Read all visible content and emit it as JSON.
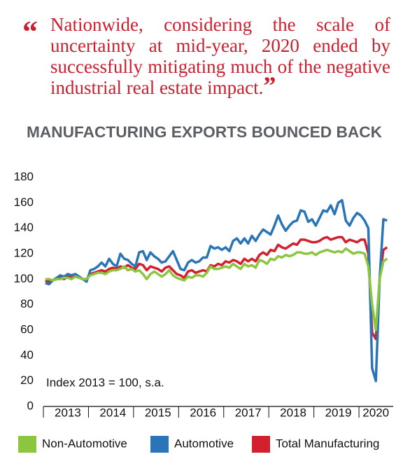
{
  "quote": {
    "open_mark": "“",
    "text": "Nationwide, considering the scale of uncertainty at mid-year, 2020 ended by successfully mitigating much of the negative industrial real estate impact.",
    "close_mark": "”"
  },
  "chart_data": {
    "type": "line",
    "title": "MANUFACTURING EXPORTS BOUNCED BACK",
    "annotation": "Index 2013 = 100, s.a.",
    "categories": [
      null,
      null,
      null,
      null,
      null,
      null,
      "2013",
      null,
      null,
      null,
      null,
      null,
      null,
      null,
      null,
      null,
      null,
      null,
      "2014",
      null,
      null,
      null,
      null,
      null,
      null,
      null,
      null,
      null,
      null,
      null,
      "2015",
      null,
      null,
      null,
      null,
      null,
      null,
      null,
      null,
      null,
      null,
      null,
      "2016",
      null,
      null,
      null,
      null,
      null,
      null,
      null,
      null,
      null,
      null,
      null,
      "2017",
      null,
      null,
      null,
      null,
      null,
      null,
      null,
      null,
      null,
      null,
      null,
      "2018",
      null,
      null,
      null,
      null,
      null,
      null,
      null,
      null,
      null,
      null,
      null,
      "2019",
      null,
      null,
      null,
      null,
      null,
      null,
      null,
      null,
      null,
      "2020",
      null,
      null,
      null
    ],
    "series": [
      {
        "name": "Non-Automotive",
        "color": "#8cc63f",
        "values": [
          100,
          100,
          99,
          100,
          100,
          101,
          101,
          100,
          102,
          101,
          100,
          100,
          103,
          104,
          105,
          105,
          104,
          106,
          107,
          107,
          108,
          110,
          107,
          108,
          106,
          107,
          104,
          100,
          104,
          106,
          104,
          102,
          104,
          107,
          103,
          101,
          100,
          99,
          102,
          101,
          103,
          103,
          102,
          105,
          110,
          108,
          108,
          109,
          110,
          109,
          112,
          110,
          108,
          112,
          110,
          111,
          109,
          115,
          114,
          112,
          116,
          115,
          118,
          117,
          119,
          118,
          119,
          121,
          121,
          120,
          120,
          121,
          119,
          121,
          122,
          123,
          122,
          121,
          122,
          121,
          124,
          122,
          120,
          121,
          121,
          120,
          110,
          80,
          60,
          100,
          114,
          116
        ]
      },
      {
        "name": "Automotive",
        "color": "#2a75b8",
        "values": [
          97,
          96,
          99,
          101,
          103,
          102,
          104,
          103,
          104,
          102,
          100,
          98,
          107,
          108,
          110,
          113,
          110,
          116,
          112,
          110,
          120,
          116,
          115,
          112,
          110,
          121,
          122,
          115,
          121,
          118,
          116,
          113,
          114,
          118,
          122,
          115,
          108,
          107,
          113,
          115,
          113,
          114,
          117,
          117,
          126,
          124,
          125,
          123,
          125,
          122,
          130,
          132,
          128,
          132,
          128,
          134,
          130,
          135,
          139,
          137,
          135,
          142,
          150,
          143,
          138,
          142,
          145,
          146,
          154,
          153,
          145,
          147,
          142,
          148,
          154,
          153,
          158,
          151,
          160,
          162,
          146,
          142,
          148,
          152,
          150,
          146,
          140,
          30,
          20,
          100,
          147,
          146
        ]
      },
      {
        "name": "Total Manufacturing",
        "color": "#d2202f",
        "values": [
          99,
          98,
          99,
          100,
          101,
          100,
          102,
          101,
          102,
          101,
          100,
          100,
          104,
          105,
          106,
          107,
          106,
          108,
          109,
          108,
          110,
          109,
          111,
          109,
          108,
          112,
          111,
          107,
          110,
          109,
          108,
          106,
          109,
          110,
          107,
          104,
          103,
          101,
          106,
          107,
          105,
          106,
          107,
          106,
          111,
          110,
          112,
          111,
          114,
          113,
          115,
          114,
          112,
          116,
          114,
          116,
          114,
          119,
          121,
          119,
          123,
          122,
          127,
          125,
          124,
          126,
          128,
          127,
          131,
          131,
          130,
          129,
          129,
          130,
          132,
          133,
          131,
          132,
          133,
          133,
          129,
          131,
          130,
          129,
          131,
          131,
          120,
          58,
          53,
          100,
          123,
          125
        ]
      }
    ],
    "ylim": [
      0,
      180
    ],
    "yticks": [
      0,
      20,
      40,
      60,
      80,
      100,
      120,
      140,
      160,
      180
    ],
    "grid": false
  }
}
